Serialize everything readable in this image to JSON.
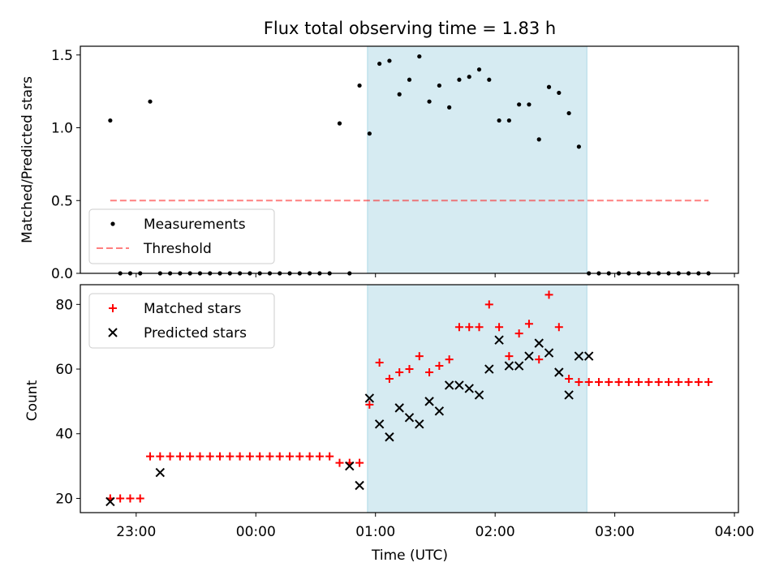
{
  "chart_data": [
    {
      "type": "scatter",
      "title": "Flux total observing time = 1.83 h",
      "xlabel": "",
      "ylabel": "Matched/Predicted stars",
      "ylim": [
        0,
        1.56
      ],
      "xlim": [
        "22:32",
        "04:02"
      ],
      "yticks": [
        0.0,
        0.5,
        1.0,
        1.5
      ],
      "ytick_labels": [
        "0.0",
        "0.5",
        "1.0",
        "1.5"
      ],
      "shaded_span": [
        "00:56",
        "02:46"
      ],
      "threshold": {
        "name": "Threshold",
        "value": 0.5,
        "x_range": [
          "22:47",
          "03:47"
        ]
      },
      "legend": {
        "placement": "lower-left",
        "entries": [
          "Measurements",
          "Threshold"
        ]
      },
      "series": [
        {
          "name": "Measurements",
          "x": [
            "22:47",
            "22:52",
            "22:57",
            "23:02",
            "23:07",
            "23:12",
            "23:17",
            "23:22",
            "23:27",
            "23:32",
            "23:37",
            "23:42",
            "23:47",
            "23:52",
            "23:57",
            "00:02",
            "00:07",
            "00:12",
            "00:17",
            "00:22",
            "00:27",
            "00:32",
            "00:37",
            "00:42",
            "00:47",
            "00:52",
            "00:57",
            "01:02",
            "01:07",
            "01:12",
            "01:17",
            "01:22",
            "01:27",
            "01:32",
            "01:37",
            "01:42",
            "01:47",
            "01:52",
            "01:57",
            "02:02",
            "02:07",
            "02:12",
            "02:17",
            "02:22",
            "02:27",
            "02:32",
            "02:37",
            "02:42",
            "02:47",
            "02:52",
            "02:57",
            "03:02",
            "03:07",
            "03:12",
            "03:17",
            "03:22",
            "03:27",
            "03:32",
            "03:37",
            "03:42",
            "03:47"
          ],
          "values": [
            1.05,
            0,
            0,
            0,
            1.18,
            0,
            0,
            0,
            0,
            0,
            0,
            0,
            0,
            0,
            0,
            0,
            0,
            0,
            0,
            0,
            0,
            0,
            0,
            1.03,
            0,
            1.29,
            0.96,
            1.44,
            1.46,
            1.23,
            1.33,
            1.49,
            1.18,
            1.29,
            1.14,
            1.33,
            1.35,
            1.4,
            1.33,
            1.05,
            1.05,
            1.16,
            1.16,
            0.92,
            1.28,
            1.24,
            1.1,
            0.87,
            0,
            0,
            0,
            0,
            0,
            0,
            0,
            0,
            0,
            0,
            0,
            0,
            0
          ]
        }
      ]
    },
    {
      "type": "scatter",
      "title": "",
      "xlabel": "Time (UTC)",
      "ylabel": "Count",
      "ylim": [
        15.6,
        86.1
      ],
      "xlim": [
        "22:32",
        "04:02"
      ],
      "yticks": [
        20,
        40,
        60,
        80
      ],
      "ytick_labels": [
        "20",
        "40",
        "60",
        "80"
      ],
      "xticks": [
        "23:00",
        "00:00",
        "01:00",
        "02:00",
        "03:00",
        "04:00"
      ],
      "shaded_span": [
        "00:56",
        "02:46"
      ],
      "legend": {
        "placement": "upper-left",
        "entries": [
          "Matched stars",
          "Predicted stars"
        ]
      },
      "series": [
        {
          "name": "Matched stars",
          "color": "#ff0000",
          "marker": "plus",
          "x": [
            "22:47",
            "22:52",
            "22:57",
            "23:02",
            "23:07",
            "23:12",
            "23:17",
            "23:22",
            "23:27",
            "23:32",
            "23:37",
            "23:42",
            "23:47",
            "23:52",
            "23:57",
            "00:02",
            "00:07",
            "00:12",
            "00:17",
            "00:22",
            "00:27",
            "00:32",
            "00:37",
            "00:42",
            "00:47",
            "00:52",
            "00:57",
            "01:02",
            "01:07",
            "01:12",
            "01:17",
            "01:22",
            "01:27",
            "01:32",
            "01:37",
            "01:42",
            "01:47",
            "01:52",
            "01:57",
            "02:02",
            "02:07",
            "02:12",
            "02:17",
            "02:22",
            "02:27",
            "02:32",
            "02:37",
            "02:42",
            "02:47",
            "02:52",
            "02:57",
            "03:02",
            "03:07",
            "03:12",
            "03:17",
            "03:22",
            "03:27",
            "03:32",
            "03:37",
            "03:42",
            "03:47"
          ],
          "values": [
            20,
            20,
            20,
            20,
            33,
            33,
            33,
            33,
            33,
            33,
            33,
            33,
            33,
            33,
            33,
            33,
            33,
            33,
            33,
            33,
            33,
            33,
            33,
            31,
            31,
            31,
            49,
            62,
            57,
            59,
            60,
            64,
            59,
            61,
            63,
            73,
            73,
            73,
            80,
            73,
            64,
            71,
            74,
            63,
            83,
            73,
            57,
            56,
            56,
            56,
            56,
            56,
            56,
            56,
            56,
            56,
            56,
            56,
            56,
            56,
            56
          ]
        },
        {
          "name": "Predicted stars",
          "color": "#000000",
          "marker": "x",
          "x": [
            "22:47",
            "23:12",
            "00:47",
            "00:52",
            "00:57",
            "01:02",
            "01:07",
            "01:12",
            "01:17",
            "01:22",
            "01:27",
            "01:32",
            "01:37",
            "01:42",
            "01:47",
            "01:52",
            "01:57",
            "02:02",
            "02:07",
            "02:12",
            "02:17",
            "02:22",
            "02:27",
            "02:32",
            "02:37",
            "02:42",
            "02:47"
          ],
          "values": [
            19,
            28,
            30,
            24,
            51,
            43,
            39,
            48,
            45,
            43,
            50,
            47,
            55,
            55,
            54,
            52,
            60,
            69,
            61,
            61,
            64,
            68,
            65,
            59,
            52,
            64,
            64
          ]
        }
      ]
    }
  ]
}
